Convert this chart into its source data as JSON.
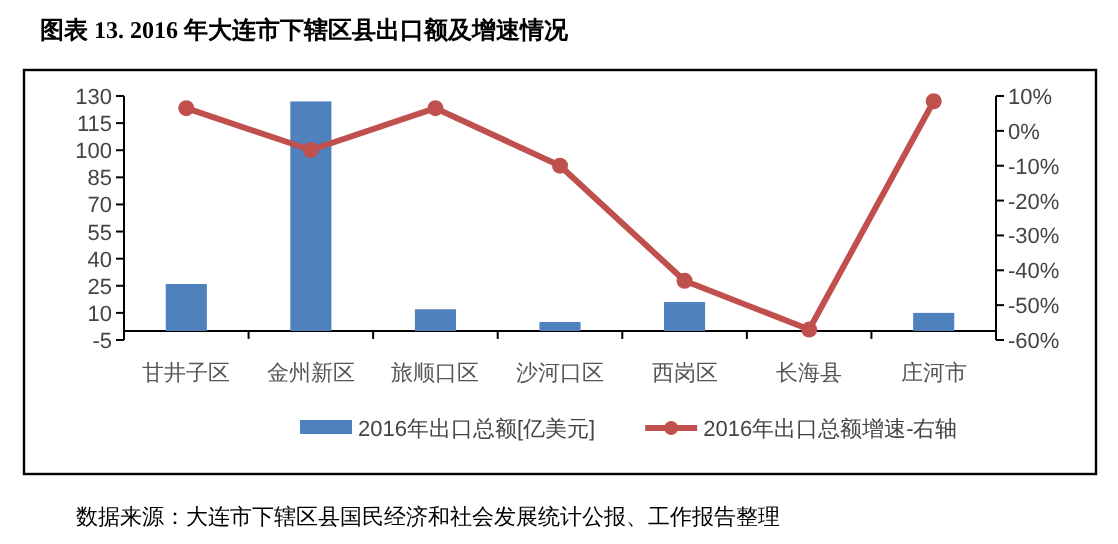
{
  "chart_data": {
    "type": "bar",
    "title": "图表 13. 2016 年大连市下辖区县出口额及增速情况",
    "categories": [
      "甘井子区",
      "金州新区",
      "旅顺口区",
      "沙河口区",
      "西岗区",
      "长海县",
      "庄河市"
    ],
    "series": [
      {
        "name": "2016年出口总额[亿美元]",
        "color": "#4f81bd",
        "values": [
          26,
          127,
          12,
          5,
          16,
          null,
          10
        ]
      },
      {
        "name": "2016年出口总额增速-右轴",
        "type": "line",
        "axis": "y2",
        "color": "#c0504d",
        "values": [
          6.5,
          -5.5,
          6.5,
          -10,
          -43,
          -57,
          8.5
        ]
      }
    ],
    "ylim": [
      -5,
      130
    ],
    "yticks": [
      -5,
      10,
      25,
      40,
      55,
      70,
      85,
      100,
      115,
      130
    ],
    "y2lim": [
      -60,
      10
    ],
    "y2ticks": [
      {
        "value": -60,
        "label": "-60%"
      },
      {
        "value": -50,
        "label": "-50%"
      },
      {
        "value": -40,
        "label": "-40%"
      },
      {
        "value": -30,
        "label": "-30%"
      },
      {
        "value": -20,
        "label": "-20%"
      },
      {
        "value": -10,
        "label": "-10%"
      },
      {
        "value": 0,
        "label": "0%"
      },
      {
        "value": 10,
        "label": "10%"
      }
    ],
    "legend": "bottom",
    "marker": "circle",
    "annotations": [
      "数据来源：大连市下辖区县国民经济和社会发展统计公报、工作报告整理"
    ]
  }
}
